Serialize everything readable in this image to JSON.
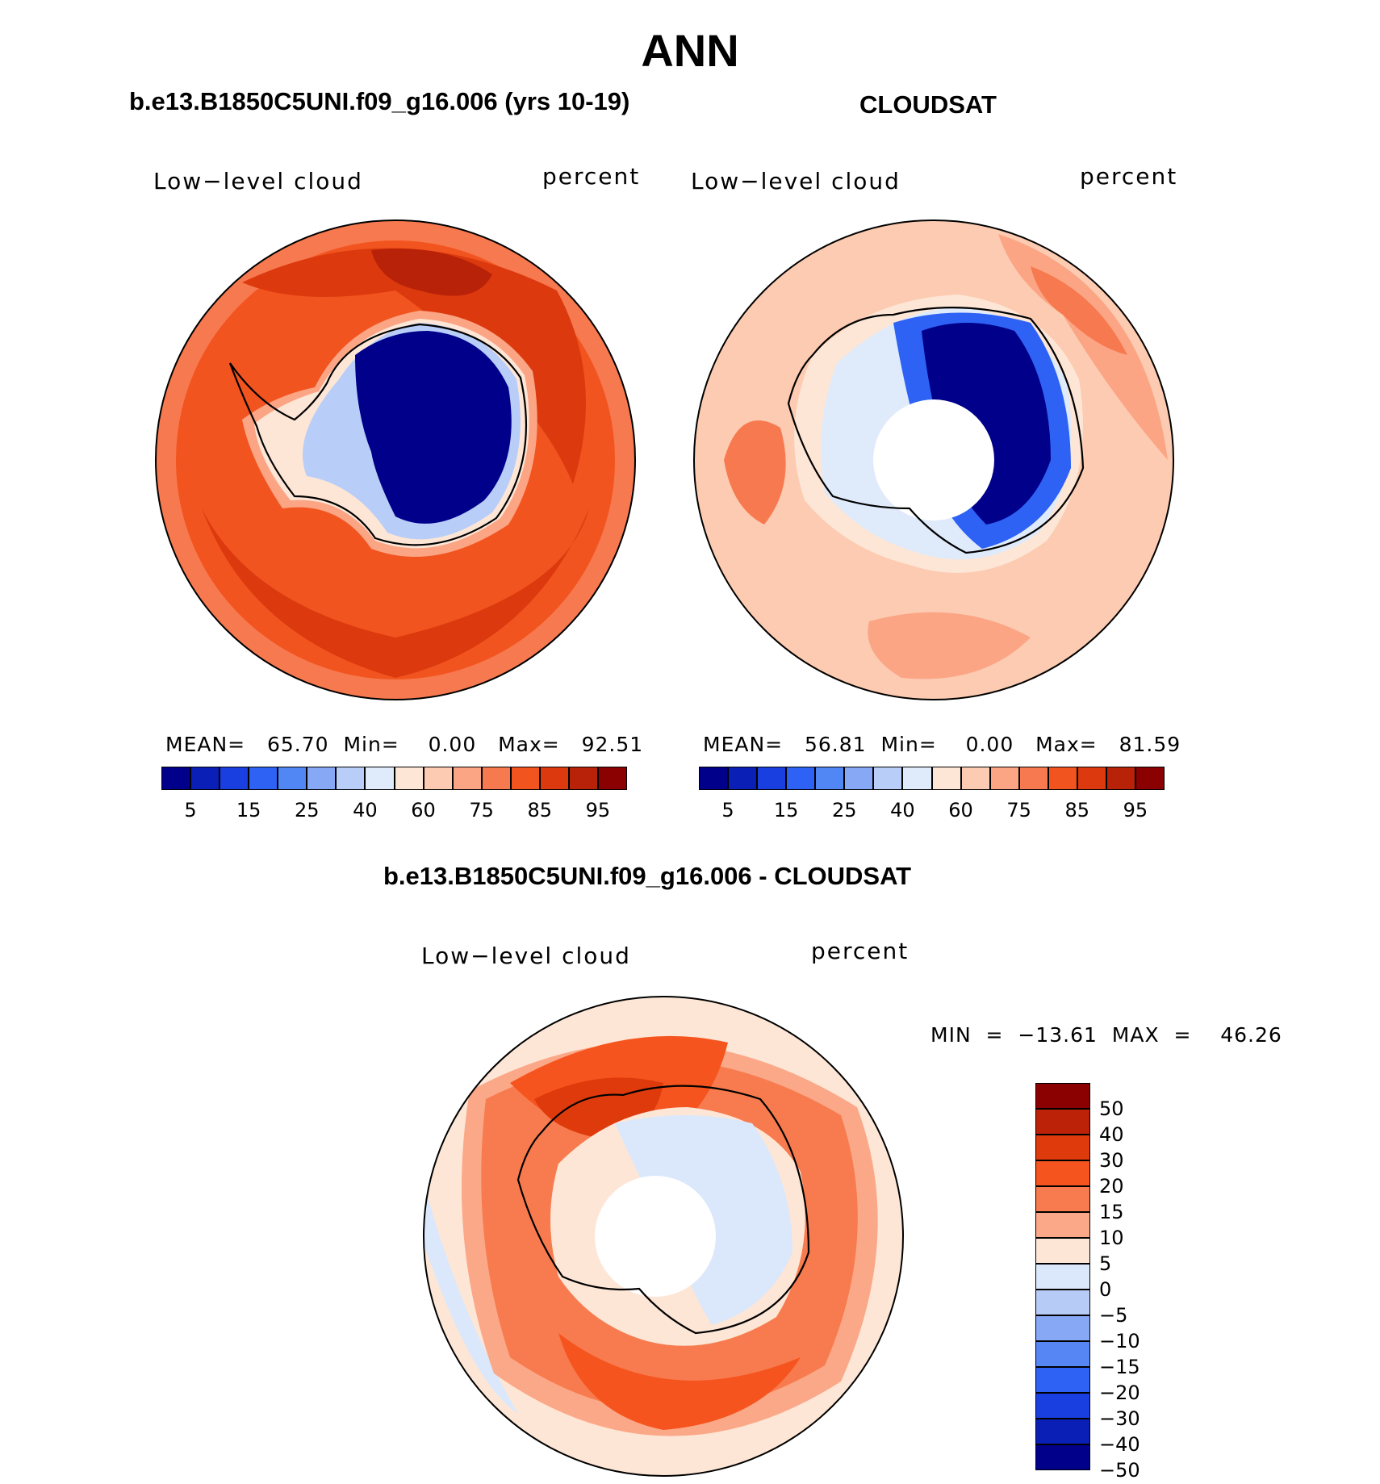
{
  "title": "ANN",
  "panels": {
    "model": {
      "title": "b.e13.B1850C5UNI.f09_g16.006 (yrs 10-19)",
      "variable": "Low−level cloud",
      "units": "percent",
      "stats": {
        "mean_label": "MEAN=",
        "mean": "65.70",
        "min_label": "Min=",
        "min": "0.00",
        "max_label": "Max=",
        "max": "92.51"
      }
    },
    "obs": {
      "title": "CLOUDSAT",
      "variable": "Low−level cloud",
      "units": "percent",
      "stats": {
        "mean_label": "MEAN=",
        "mean": "56.81",
        "min_label": "Min=",
        "min": "0.00",
        "max_label": "Max=",
        "max": "81.59"
      }
    },
    "diff": {
      "title": "b.e13.B1850C5UNI.f09_g16.006 - CLOUDSAT",
      "variable": "Low−level cloud",
      "units": "percent",
      "stats_text": "MIN  =  −13.61  MAX  =    46.26"
    }
  },
  "colorbars": {
    "abs": {
      "colors": [
        "#00008b",
        "#0a1fb5",
        "#1a3fe0",
        "#2e62f5",
        "#5186f5",
        "#86a8f5",
        "#b8cdf7",
        "#dfeafb",
        "#fde6d6",
        "#fccbb1",
        "#fba585",
        "#f7794f",
        "#f2541f",
        "#dc3a0e",
        "#b82208",
        "#8b0000"
      ],
      "tick_labels": [
        "5",
        "15",
        "25",
        "40",
        "60",
        "75",
        "85",
        "95"
      ]
    },
    "diff": {
      "colors": [
        "#8b0000",
        "#bb2208",
        "#df3a0c",
        "#f6541e",
        "#f77b4e",
        "#fba888",
        "#fde6d6",
        "#dbe8fb",
        "#b6cbf6",
        "#86a8f5",
        "#5586f4",
        "#2e62f5",
        "#1a3fe0",
        "#0a1fb5",
        "#00008b"
      ],
      "tick_labels": [
        "50",
        "40",
        "30",
        "20",
        "15",
        "10",
        "5",
        "0",
        "−5",
        "−10",
        "−15",
        "−20",
        "−30",
        "−40",
        "−50"
      ]
    }
  }
}
